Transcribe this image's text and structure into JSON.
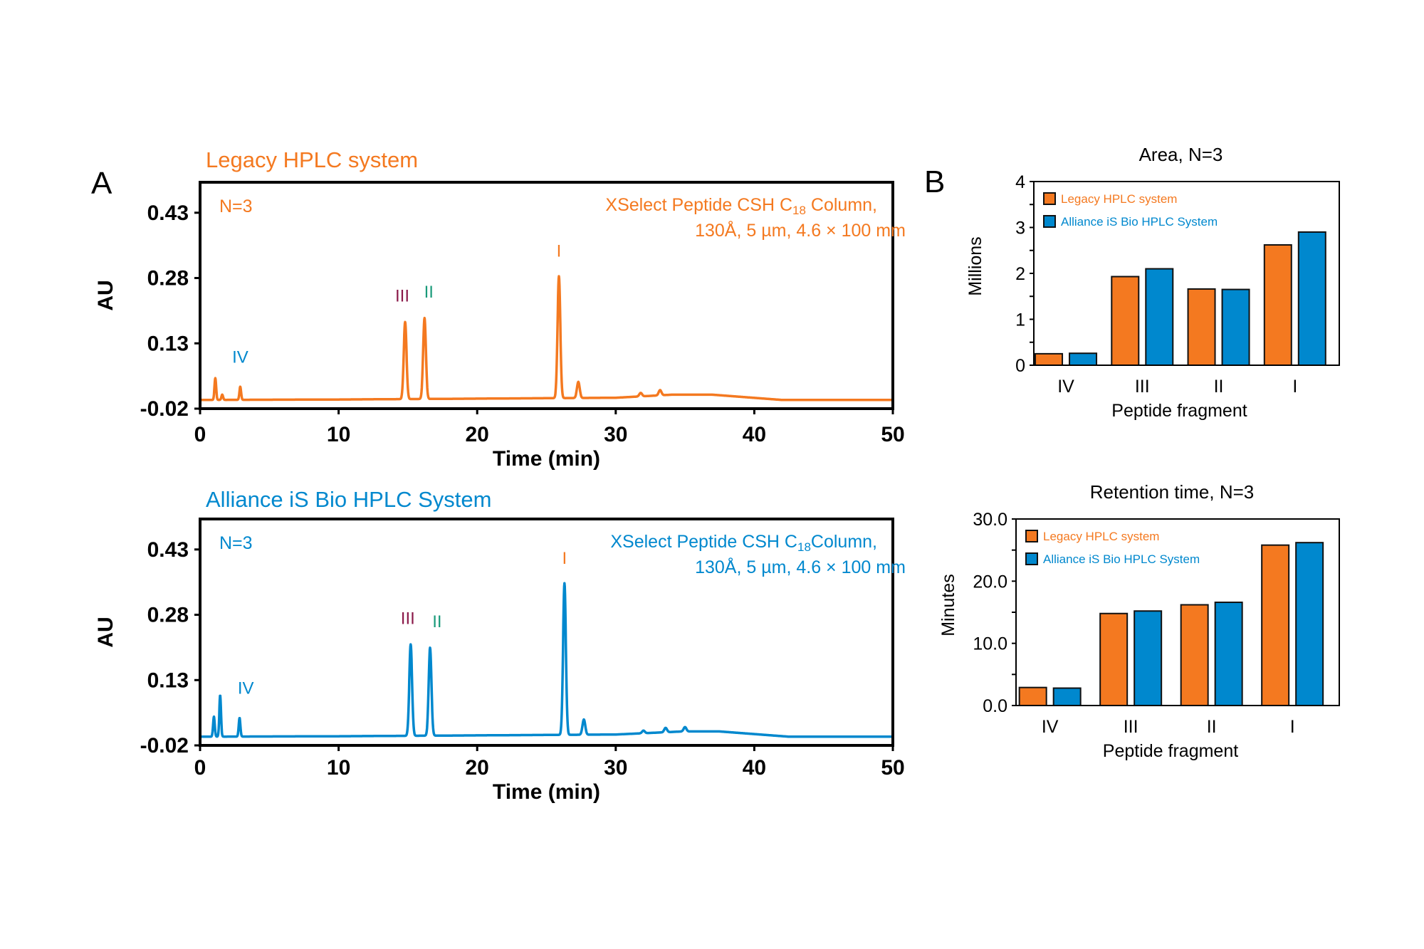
{
  "colors": {
    "legacy": "#F47920",
    "alliance": "#0088CE",
    "label_III": "#8B1A4A",
    "label_II": "#1A9A7A",
    "label_I": "#F47920"
  },
  "panels": {
    "A": "A",
    "B": "B"
  },
  "chart_data": [
    {
      "type": "line",
      "title": "Legacy HPLC system",
      "n_label": "N=3",
      "column_line1": "XSelect  Peptide CSH C",
      "column_sub": "18",
      "column_line1_end": " Column,",
      "column_line2": "130Å, 5 µm, 4.6 × 100 mm",
      "xlabel": "Time (min)",
      "ylabel": "AU",
      "xlim": [
        0,
        50
      ],
      "ylim": [
        -0.02,
        0.5
      ],
      "xticks": [
        "0",
        "10",
        "20",
        "30",
        "40",
        "50"
      ],
      "yticks": [
        "-0.02",
        "0.13",
        "0.28",
        "0.43"
      ],
      "color": "#F47920",
      "peaks": [
        [
          1.1,
          0.05
        ],
        [
          1.6,
          0.012
        ],
        [
          2.9,
          0.03
        ],
        [
          14.8,
          0.177
        ],
        [
          16.2,
          0.186
        ],
        [
          25.9,
          0.28
        ],
        [
          27.3,
          0.037
        ],
        [
          31.8,
          0.008
        ],
        [
          33.2,
          0.012
        ]
      ],
      "baseline": [
        [
          0,
          0.0
        ],
        [
          10,
          0.001
        ],
        [
          20,
          0.003
        ],
        [
          30,
          0.005
        ],
        [
          34,
          0.012
        ],
        [
          37,
          0.012
        ],
        [
          42,
          0.0
        ],
        [
          50,
          0.0
        ]
      ],
      "peak_labels": [
        {
          "text": "IV",
          "time": 2.9,
          "color": "#0088CE"
        },
        {
          "text": "III",
          "time": 14.8,
          "color": "#8B1A4A"
        },
        {
          "text": "II",
          "time": 16.2,
          "color": "#1A9A7A"
        },
        {
          "text": "I",
          "time": 25.9,
          "color": "#F47920"
        }
      ]
    },
    {
      "type": "line",
      "title": "Alliance iS Bio HPLC System",
      "n_label": "N=3",
      "column_line1": "XSelect Peptide CSH C",
      "column_sub": "18",
      "column_line1_end": "Column,",
      "column_line2": "130Å, 5 µm, 4.6 × 100 mm",
      "xlabel": "Time (min)",
      "ylabel": "AU",
      "xlim": [
        0,
        50
      ],
      "ylim": [
        -0.02,
        0.5
      ],
      "xticks": [
        "0",
        "10",
        "20",
        "30",
        "40",
        "50"
      ],
      "yticks": [
        "-0.02",
        "0.13",
        "0.28",
        "0.43"
      ],
      "color": "#0088CE",
      "peaks": [
        [
          1.0,
          0.046
        ],
        [
          1.45,
          0.095
        ],
        [
          2.85,
          0.043
        ],
        [
          15.2,
          0.21
        ],
        [
          16.6,
          0.202
        ],
        [
          26.3,
          0.348
        ],
        [
          27.7,
          0.035
        ],
        [
          32.0,
          0.006
        ],
        [
          33.6,
          0.01
        ],
        [
          35.0,
          0.01
        ]
      ],
      "baseline": [
        [
          0,
          0.0
        ],
        [
          10,
          0.001
        ],
        [
          20,
          0.003
        ],
        [
          30,
          0.005
        ],
        [
          34.8,
          0.012
        ],
        [
          37.5,
          0.012
        ],
        [
          42.5,
          0.0
        ],
        [
          50,
          0.0
        ]
      ],
      "peak_labels": [
        {
          "text": "IV",
          "time": 3.3,
          "color": "#0088CE"
        },
        {
          "text": "III",
          "time": 15.2,
          "color": "#8B1A4A"
        },
        {
          "text": "II",
          "time": 16.8,
          "color": "#1A9A7A"
        },
        {
          "text": "I",
          "time": 26.3,
          "color": "#F47920"
        }
      ]
    },
    {
      "type": "bar",
      "title": "Area, N=3",
      "xlabel": "Peptide fragment",
      "ylabel": "Millions",
      "categories": [
        "IV",
        "III",
        "II",
        "I"
      ],
      "ylim": [
        0,
        4
      ],
      "yticks": [
        "0",
        "1",
        "2",
        "3",
        "4"
      ],
      "minor_step": 0.5,
      "legend": "top-left",
      "series": [
        {
          "name": "Legacy HPLC system",
          "color": "#F47920",
          "values": [
            0.25,
            1.93,
            1.66,
            2.62
          ]
        },
        {
          "name": "Alliance  iS Bio HPLC System",
          "color": "#0088CE",
          "values": [
            0.26,
            2.1,
            1.65,
            2.9
          ]
        }
      ]
    },
    {
      "type": "bar",
      "title": "Retention time, N=3",
      "xlabel": "Peptide fragment",
      "ylabel": "Minutes",
      "categories": [
        "IV",
        "III",
        "II",
        "I"
      ],
      "ylim": [
        0,
        30
      ],
      "yticks": [
        "0.0",
        "10.0",
        "20.0",
        "30.0"
      ],
      "minor_step": 5,
      "legend": "top-left",
      "series": [
        {
          "name": "Legacy HPLC system",
          "color": "#F47920",
          "values": [
            2.9,
            14.8,
            16.2,
            25.8
          ]
        },
        {
          "name": "Alliance  iS Bio HPLC System",
          "color": "#0088CE",
          "values": [
            2.8,
            15.2,
            16.6,
            26.2
          ]
        }
      ]
    }
  ]
}
